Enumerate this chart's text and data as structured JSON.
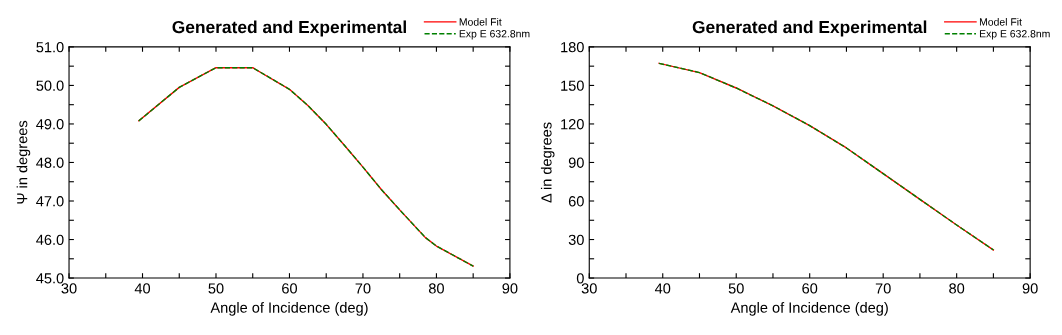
{
  "chart_data": [
    {
      "type": "line",
      "title": "Generated and Experimental",
      "xlabel": "Angle of Incidence (deg)",
      "ylabel": "Ψ in degrees",
      "legend": "top right",
      "grid": false,
      "marker": "none",
      "xlim": [
        30,
        90
      ],
      "xticks": [
        30,
        {
          "value": 35,
          "label": null
        },
        40,
        {
          "value": 45,
          "label": null
        },
        50,
        {
          "value": 55,
          "label": null
        },
        60,
        {
          "value": 65,
          "label": null
        },
        70,
        {
          "value": 75,
          "label": null
        },
        80,
        {
          "value": 85,
          "label": null
        },
        90
      ],
      "ylim": [
        45,
        51
      ],
      "yticks": [
        {
          "value": 45,
          "label": "45.0"
        },
        {
          "value": 45.5,
          "label": null
        },
        {
          "value": 46,
          "label": "46.0"
        },
        {
          "value": 46.5,
          "label": null
        },
        {
          "value": 47,
          "label": "47.0"
        },
        {
          "value": 47.5,
          "label": null
        },
        {
          "value": 48,
          "label": "48.0"
        },
        {
          "value": 48.5,
          "label": null
        },
        {
          "value": 49,
          "label": "49.0"
        },
        {
          "value": 49.5,
          "label": null
        },
        {
          "value": 50,
          "label": "50.0"
        },
        {
          "value": 50.5,
          "label": null
        },
        {
          "value": 51,
          "label": "51.0"
        }
      ],
      "x": [
        39.5,
        45,
        50,
        55,
        60,
        62.5,
        65,
        67.5,
        70,
        72.5,
        75,
        78.5,
        80,
        85
      ],
      "series": [
        {
          "name": "Model Fit",
          "color": "#ff0000",
          "line_style": "solid",
          "values": [
            49.08,
            49.95,
            50.46,
            50.46,
            49.9,
            49.48,
            48.99,
            48.44,
            47.88,
            47.3,
            46.77,
            46.05,
            45.83,
            45.31
          ]
        },
        {
          "name": "Exp E 632.8nm",
          "color": "#008000",
          "line_style": "dashed",
          "values": [
            49.08,
            49.95,
            50.46,
            50.46,
            49.9,
            49.48,
            48.99,
            48.44,
            47.88,
            47.3,
            46.77,
            46.05,
            45.83,
            45.31
          ]
        }
      ]
    },
    {
      "type": "line",
      "title": "Generated and Experimental",
      "xlabel": "Angle of Incidence (deg)",
      "ylabel": "Δ in degrees",
      "legend": "top right",
      "grid": false,
      "marker": "none",
      "xlim": [
        30,
        90
      ],
      "xticks": [
        30,
        {
          "value": 35,
          "label": null
        },
        40,
        {
          "value": 45,
          "label": null
        },
        50,
        {
          "value": 55,
          "label": null
        },
        60,
        {
          "value": 65,
          "label": null
        },
        70,
        {
          "value": 75,
          "label": null
        },
        80,
        {
          "value": 85,
          "label": null
        },
        90
      ],
      "ylim": [
        0,
        180
      ],
      "yticks": [
        0,
        {
          "value": 15,
          "label": null
        },
        30,
        {
          "value": 45,
          "label": null
        },
        60,
        {
          "value": 75,
          "label": null
        },
        90,
        {
          "value": 105,
          "label": null
        },
        120,
        {
          "value": 135,
          "label": null
        },
        150,
        {
          "value": 165,
          "label": null
        },
        180
      ],
      "x": [
        39.5,
        45,
        50,
        55,
        60,
        65,
        70,
        75,
        80,
        85
      ],
      "series": [
        {
          "name": "Model Fit",
          "color": "#ff0000",
          "line_style": "solid",
          "values": [
            167.2,
            160,
            148,
            134.1,
            118.7,
            101.3,
            81.3,
            61.3,
            41.3,
            21.9
          ]
        },
        {
          "name": "Exp E 632.8nm",
          "color": "#008000",
          "line_style": "dashed",
          "values": [
            167.2,
            160,
            148,
            134.1,
            118.7,
            101.3,
            81.3,
            61.3,
            41.3,
            21.9
          ]
        }
      ]
    }
  ]
}
